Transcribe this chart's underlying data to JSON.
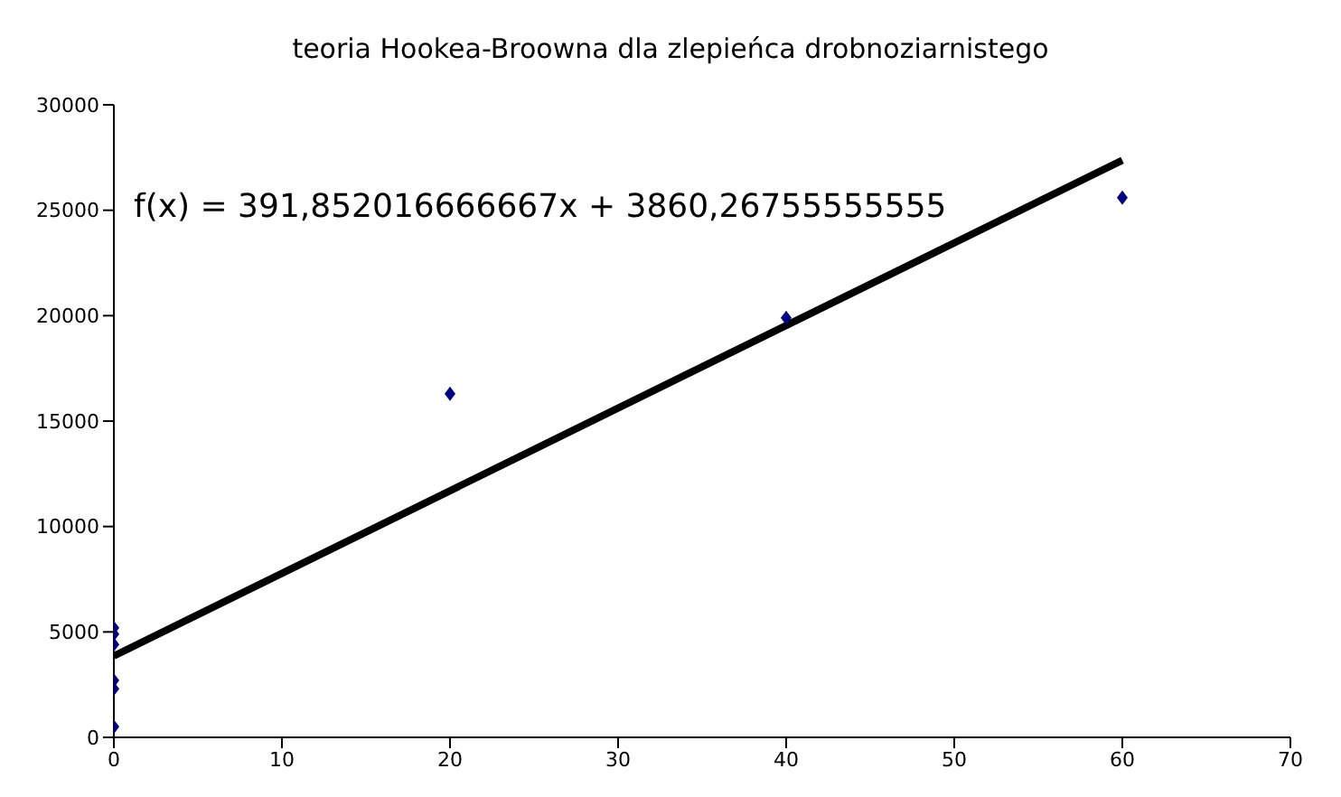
{
  "chart_data": {
    "type": "scatter",
    "title": "teoria Hookea-Broowna dla zlepieńca drobnoziarnistego",
    "annotations": [
      "f(x) = 391,852016666667x + 3860,26755555555"
    ],
    "series": [
      {
        "color": "#000080",
        "marker": "diamond",
        "x": [
          0,
          0,
          0,
          0,
          0,
          0,
          20,
          40,
          60
        ],
        "values": [
          5200,
          4900,
          4400,
          2700,
          2300,
          500,
          16300,
          19900,
          25600
        ]
      },
      {
        "type": "line",
        "color": "#000000",
        "marker": "none",
        "line_style": "solid",
        "x": [
          0,
          60
        ],
        "values": [
          3860,
          27370
        ]
      }
    ],
    "xlim": [
      0,
      70
    ],
    "xticks": [
      0,
      10,
      20,
      30,
      40,
      50,
      60,
      70
    ],
    "ylim": [
      0,
      30000
    ],
    "yticks": [
      0,
      5000,
      10000,
      15000,
      20000,
      25000,
      30000
    ],
    "grid": false,
    "legend": false
  }
}
